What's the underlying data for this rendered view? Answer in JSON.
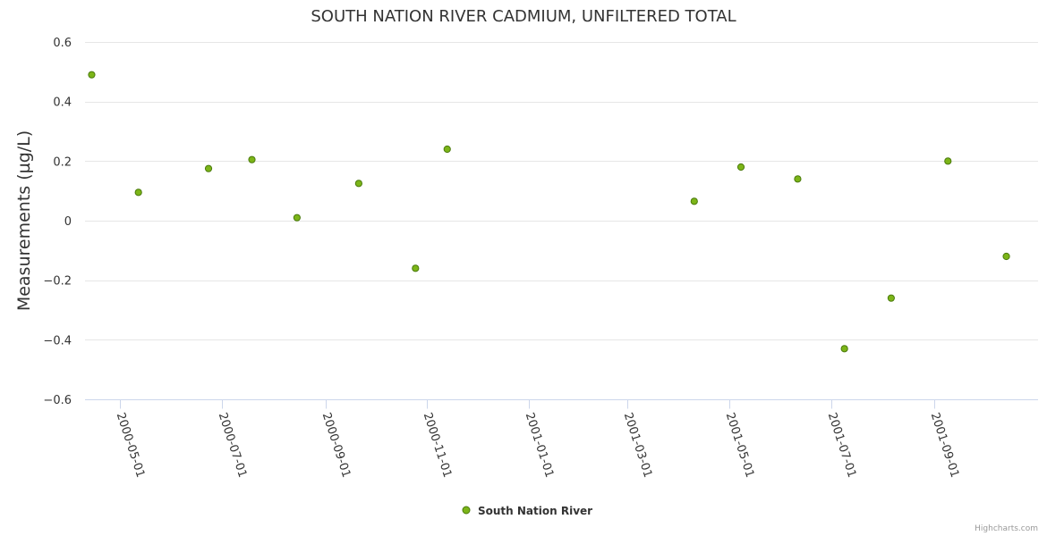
{
  "chart_data": {
    "type": "scatter",
    "title": "SOUTH NATION RIVER CADMIUM, UNFILTERED TOTAL",
    "ylabel": "Measurements (µg/L)",
    "xlabel": "",
    "ylim": [
      -0.6,
      0.6
    ],
    "y_ticks": [
      -0.6,
      -0.4,
      -0.2,
      0,
      0.2,
      0.4,
      0.6
    ],
    "y_tick_labels": [
      "−0.6",
      "−0.4",
      "−0.2",
      "0",
      "0.2",
      "0.4",
      "0.6"
    ],
    "x_range": [
      "2000-04-10",
      "2001-11-02"
    ],
    "x_ticks": [
      "2000-05-01",
      "2000-07-01",
      "2000-09-01",
      "2000-11-01",
      "2001-01-01",
      "2001-03-01",
      "2001-05-01",
      "2001-07-01",
      "2001-09-01"
    ],
    "grid": true,
    "legend_position": "bottom-center",
    "series": [
      {
        "name": "South Nation River",
        "color": "#7cb518",
        "stroke": "#4a7a0c",
        "points": [
          {
            "x": "2000-04-14",
            "y": 0.49
          },
          {
            "x": "2000-05-12",
            "y": 0.095
          },
          {
            "x": "2000-06-23",
            "y": 0.175
          },
          {
            "x": "2000-07-19",
            "y": 0.205
          },
          {
            "x": "2000-08-15",
            "y": 0.01
          },
          {
            "x": "2000-09-21",
            "y": 0.125
          },
          {
            "x": "2000-10-25",
            "y": -0.16
          },
          {
            "x": "2000-11-13",
            "y": 0.24
          },
          {
            "x": "2001-04-10",
            "y": 0.065
          },
          {
            "x": "2001-05-08",
            "y": 0.18
          },
          {
            "x": "2001-06-11",
            "y": 0.14
          },
          {
            "x": "2001-07-09",
            "y": -0.43
          },
          {
            "x": "2001-08-06",
            "y": -0.26
          },
          {
            "x": "2001-09-09",
            "y": 0.2
          },
          {
            "x": "2001-10-14",
            "y": -0.12
          }
        ]
      }
    ]
  },
  "credits": "Highcharts.com"
}
